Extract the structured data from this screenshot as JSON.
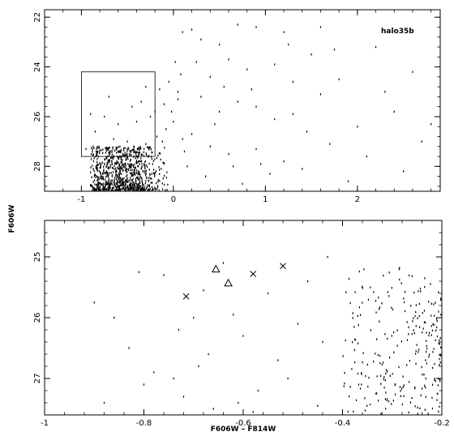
{
  "chart_data": [
    {
      "type": "scatter",
      "panel": "top",
      "annotation": "halo35b",
      "xlabel": "",
      "ylabel": "F606W",
      "xlim": [
        -1.4,
        2.9
      ],
      "ylim": [
        29.0,
        21.7
      ],
      "xticks": [
        -1,
        0,
        1,
        2
      ],
      "xtick_labels": [
        "-1",
        "0",
        "1",
        "2"
      ],
      "yticks": [
        22,
        24,
        26,
        28
      ],
      "ytick_labels": [
        "22",
        "24",
        "26",
        "28"
      ],
      "selection_box": {
        "x": [
          -1.0,
          -0.2
        ],
        "y": [
          24.2,
          27.6
        ]
      },
      "dense_clump": {
        "x_range": [
          -1.0,
          -0.05
        ],
        "y_range": [
          27.2,
          29.0
        ],
        "count": 950
      },
      "mid_points": [
        [
          -0.95,
          27.3
        ],
        [
          -0.85,
          26.6
        ],
        [
          -0.7,
          25.2
        ],
        [
          -0.6,
          26.3
        ],
        [
          -0.5,
          27.0
        ],
        [
          -0.4,
          26.2
        ],
        [
          -0.35,
          25.4
        ],
        [
          -0.3,
          27.1
        ],
        [
          -0.25,
          26.0
        ],
        [
          -0.2,
          25.8
        ],
        [
          -0.18,
          26.8
        ],
        [
          -0.15,
          24.9
        ],
        [
          -0.12,
          27.0
        ],
        [
          -0.1,
          25.5
        ],
        [
          -0.08,
          26.5
        ],
        [
          -0.05,
          24.6
        ],
        [
          -0.02,
          25.8
        ],
        [
          0.0,
          26.2
        ],
        [
          0.02,
          23.8
        ],
        [
          0.05,
          25.0
        ],
        [
          0.08,
          24.3
        ],
        [
          0.1,
          26.9
        ],
        [
          -0.9,
          25.9
        ],
        [
          -0.65,
          26.9
        ],
        [
          -0.45,
          25.6
        ],
        [
          -0.55,
          27.5
        ],
        [
          -0.75,
          26.0
        ],
        [
          -0.3,
          24.8
        ]
      ],
      "sparse_points": [
        [
          0.1,
          22.6
        ],
        [
          0.2,
          22.5
        ],
        [
          0.3,
          22.9
        ],
        [
          0.5,
          23.1
        ],
        [
          0.7,
          22.3
        ],
        [
          0.9,
          22.4
        ],
        [
          1.2,
          22.6
        ],
        [
          1.6,
          22.4
        ],
        [
          0.25,
          23.8
        ],
        [
          0.4,
          24.4
        ],
        [
          0.6,
          23.7
        ],
        [
          0.8,
          24.1
        ],
        [
          1.1,
          23.9
        ],
        [
          1.3,
          24.6
        ],
        [
          1.5,
          23.5
        ],
        [
          1.8,
          24.5
        ],
        [
          2.2,
          23.2
        ],
        [
          2.6,
          24.2
        ],
        [
          0.3,
          25.2
        ],
        [
          0.5,
          25.8
        ],
        [
          0.7,
          25.4
        ],
        [
          0.9,
          25.6
        ],
        [
          1.1,
          26.1
        ],
        [
          1.3,
          25.9
        ],
        [
          1.6,
          25.1
        ],
        [
          2.0,
          26.4
        ],
        [
          2.4,
          25.8
        ],
        [
          2.8,
          26.3
        ],
        [
          0.2,
          26.7
        ],
        [
          0.4,
          27.2
        ],
        [
          0.6,
          27.5
        ],
        [
          0.9,
          27.3
        ],
        [
          1.2,
          27.8
        ],
        [
          1.4,
          28.1
        ],
        [
          1.7,
          27.1
        ],
        [
          2.1,
          27.6
        ],
        [
          2.5,
          28.2
        ],
        [
          0.15,
          28.0
        ],
        [
          0.35,
          28.4
        ],
        [
          0.75,
          28.7
        ],
        [
          1.05,
          28.3
        ],
        [
          1.9,
          28.6
        ],
        [
          0.45,
          26.3
        ],
        [
          0.85,
          24.9
        ],
        [
          1.45,
          26.6
        ],
        [
          2.3,
          25.0
        ],
        [
          0.65,
          28.0
        ],
        [
          1.25,
          23.1
        ],
        [
          0.55,
          24.8
        ],
        [
          2.7,
          27.0
        ],
        [
          0.05,
          25.3
        ],
        [
          0.12,
          27.4
        ],
        [
          1.75,
          23.3
        ],
        [
          0.95,
          27.9
        ]
      ]
    },
    {
      "type": "scatter",
      "panel": "bottom",
      "xlabel": "F606W – F814W",
      "ylabel": "",
      "xlim": [
        -1.0,
        -0.2
      ],
      "ylim": [
        27.6,
        24.4
      ],
      "xticks": [
        -1.0,
        -0.8,
        -0.6,
        -0.4,
        -0.2
      ],
      "xtick_labels": [
        "-1",
        "-0.8",
        "-0.6",
        "-0.4",
        "-0.2"
      ],
      "yticks": [
        25,
        26,
        27
      ],
      "ytick_labels": [
        "25",
        "26",
        "27"
      ],
      "cross_markers": [
        [
          -0.715,
          25.65
        ],
        [
          -0.58,
          25.28
        ],
        [
          -0.52,
          25.15
        ]
      ],
      "triangle_markers": [
        [
          -0.655,
          25.2
        ],
        [
          -0.63,
          25.43
        ]
      ],
      "dense_region": {
        "x_range": [
          -0.4,
          -0.2
        ],
        "y_range": [
          25.1,
          27.6
        ],
        "count": 260
      },
      "sparse_points": [
        [
          -0.9,
          25.75
        ],
        [
          -0.86,
          26.0
        ],
        [
          -0.83,
          26.5
        ],
        [
          -0.8,
          27.1
        ],
        [
          -0.78,
          26.9
        ],
        [
          -0.76,
          25.3
        ],
        [
          -0.73,
          26.2
        ],
        [
          -0.72,
          27.3
        ],
        [
          -0.7,
          26.0
        ],
        [
          -0.69,
          26.8
        ],
        [
          -0.67,
          26.6
        ],
        [
          -0.66,
          27.5
        ],
        [
          -0.64,
          25.1
        ],
        [
          -0.62,
          25.95
        ],
        [
          -0.61,
          27.4
        ],
        [
          -0.6,
          26.3
        ],
        [
          -0.57,
          27.2
        ],
        [
          -0.55,
          25.6
        ],
        [
          -0.53,
          26.7
        ],
        [
          -0.51,
          27.0
        ],
        [
          -0.49,
          26.1
        ],
        [
          -0.47,
          25.4
        ],
        [
          -0.45,
          27.45
        ],
        [
          -0.44,
          26.4
        ],
        [
          -0.43,
          25.0
        ],
        [
          -0.58,
          27.55
        ],
        [
          -0.88,
          27.4
        ],
        [
          -0.81,
          25.25
        ],
        [
          -0.74,
          27.0
        ],
        [
          -0.68,
          25.55
        ]
      ]
    }
  ]
}
